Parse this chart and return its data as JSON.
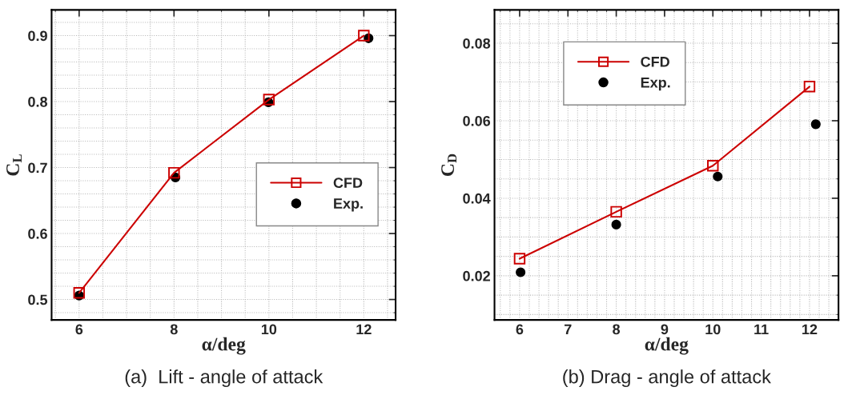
{
  "chart_data": [
    {
      "type": "line",
      "xlabel": "α/deg",
      "ylabel": "C$_{L}$",
      "annotations": [
        "(a)  Lift - angle of attack"
      ],
      "xlim": [
        5.42,
        12.67
      ],
      "ylim": [
        0.469,
        0.939
      ],
      "xticks": [
        6,
        8,
        10,
        12
      ],
      "yticks": [
        0.5,
        0.6,
        0.7,
        0.8,
        0.9
      ],
      "grid": true,
      "legend": "lower right",
      "series": [
        {
          "name": "CFD",
          "color": "#cc0000",
          "marker": "square",
          "x": [
            6,
            8,
            10,
            12
          ],
          "values": [
            0.51,
            0.692,
            0.803,
            0.9
          ]
        },
        {
          "name": "Exp.",
          "type": "scatter",
          "color": "#000000",
          "marker": "circle",
          "x": [
            6.0,
            8.03,
            9.99,
            12.1
          ],
          "values": [
            0.506,
            0.685,
            0.799,
            0.896
          ]
        }
      ]
    },
    {
      "type": "line",
      "xlabel": "α/deg",
      "ylabel": "C$_{D}$",
      "annotations": [
        "(b) Drag - angle of attack"
      ],
      "xlim": [
        5.48,
        12.6
      ],
      "ylim": [
        0.0086,
        0.0886
      ],
      "xticks": [
        6,
        7,
        8,
        9,
        10,
        11,
        12
      ],
      "yticks": [
        0.02,
        0.04,
        0.06,
        0.08
      ],
      "grid": true,
      "legend": "top left",
      "series": [
        {
          "name": "CFD",
          "color": "#cc0000",
          "marker": "square",
          "x": [
            6,
            8,
            10,
            12
          ],
          "values": [
            0.0244,
            0.0365,
            0.0484,
            0.0688
          ]
        },
        {
          "name": "Exp.",
          "type": "scatter",
          "color": "#000000",
          "marker": "circle",
          "x": [
            6.02,
            8.0,
            10.1,
            12.13
          ],
          "values": [
            0.0209,
            0.0332,
            0.0456,
            0.0591
          ]
        }
      ]
    }
  ]
}
